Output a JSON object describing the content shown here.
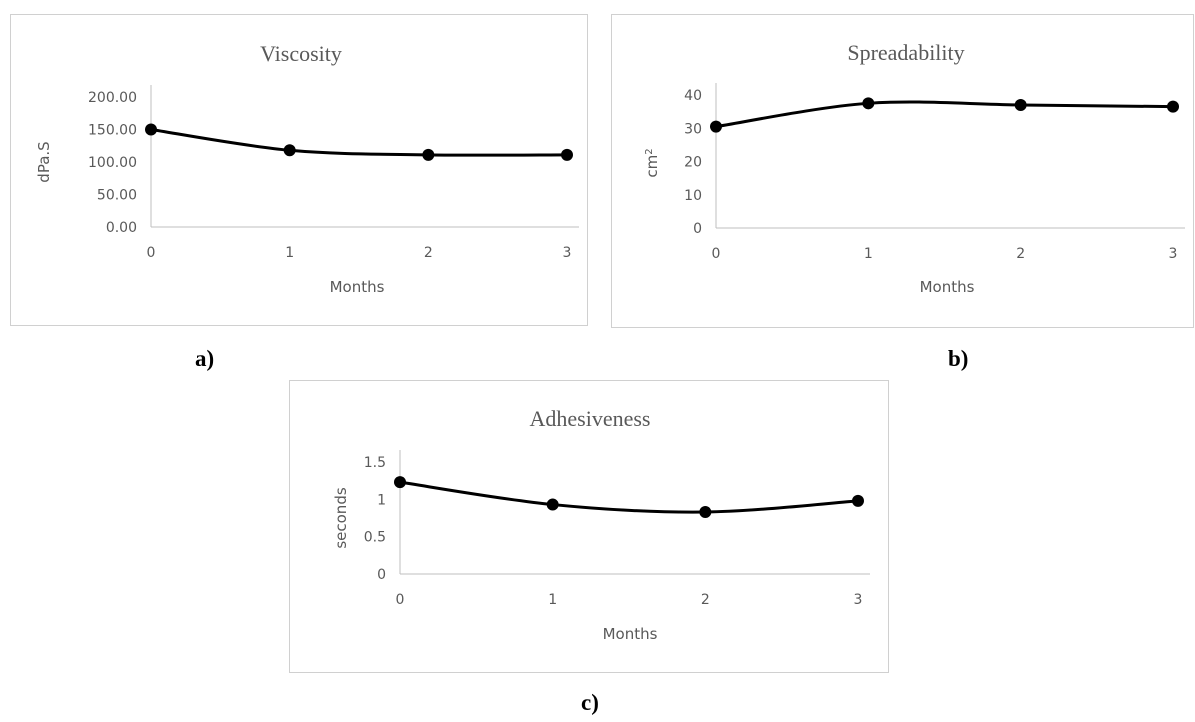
{
  "panels": [
    {
      "label": "a)"
    },
    {
      "label": "b)"
    },
    {
      "label": "c)"
    }
  ],
  "chart_data": [
    {
      "type": "line",
      "title": "Viscosity",
      "xlabel": "Months",
      "ylabel": "dPa.S",
      "x": [
        0,
        1,
        2,
        3
      ],
      "x_ticks": [
        "0",
        "1",
        "2",
        "3"
      ],
      "y_ticks": [
        "0.00",
        "50.00",
        "100.00",
        "150.00",
        "200.00"
      ],
      "ylim": [
        0,
        200
      ],
      "series": [
        {
          "values": [
            150,
            118,
            111,
            111
          ]
        }
      ],
      "grid": false,
      "line_color": "#000000"
    },
    {
      "type": "line",
      "title": "Spreadability",
      "xlabel": "Months",
      "ylabel": "cm",
      "ylabel_sup": "2",
      "x": [
        0,
        1,
        2,
        3
      ],
      "x_ticks": [
        "0",
        "1",
        "2",
        "3"
      ],
      "y_ticks": [
        "0",
        "10",
        "20",
        "30",
        "40"
      ],
      "ylim": [
        0,
        40
      ],
      "series": [
        {
          "values": [
            30.5,
            37.5,
            37,
            36.5
          ]
        }
      ],
      "grid": false,
      "line_color": "#000000"
    },
    {
      "type": "line",
      "title": "Adhesiveness",
      "xlabel": "Months",
      "ylabel": "seconds",
      "x": [
        0,
        1,
        2,
        3
      ],
      "x_ticks": [
        "0",
        "1",
        "2",
        "3"
      ],
      "y_ticks": [
        "0",
        "0.5",
        "1",
        "1.5"
      ],
      "ylim": [
        0,
        1.5
      ],
      "series": [
        {
          "values": [
            1.23,
            0.93,
            0.83,
            0.98
          ]
        }
      ],
      "grid": false,
      "line_color": "#000000"
    }
  ]
}
